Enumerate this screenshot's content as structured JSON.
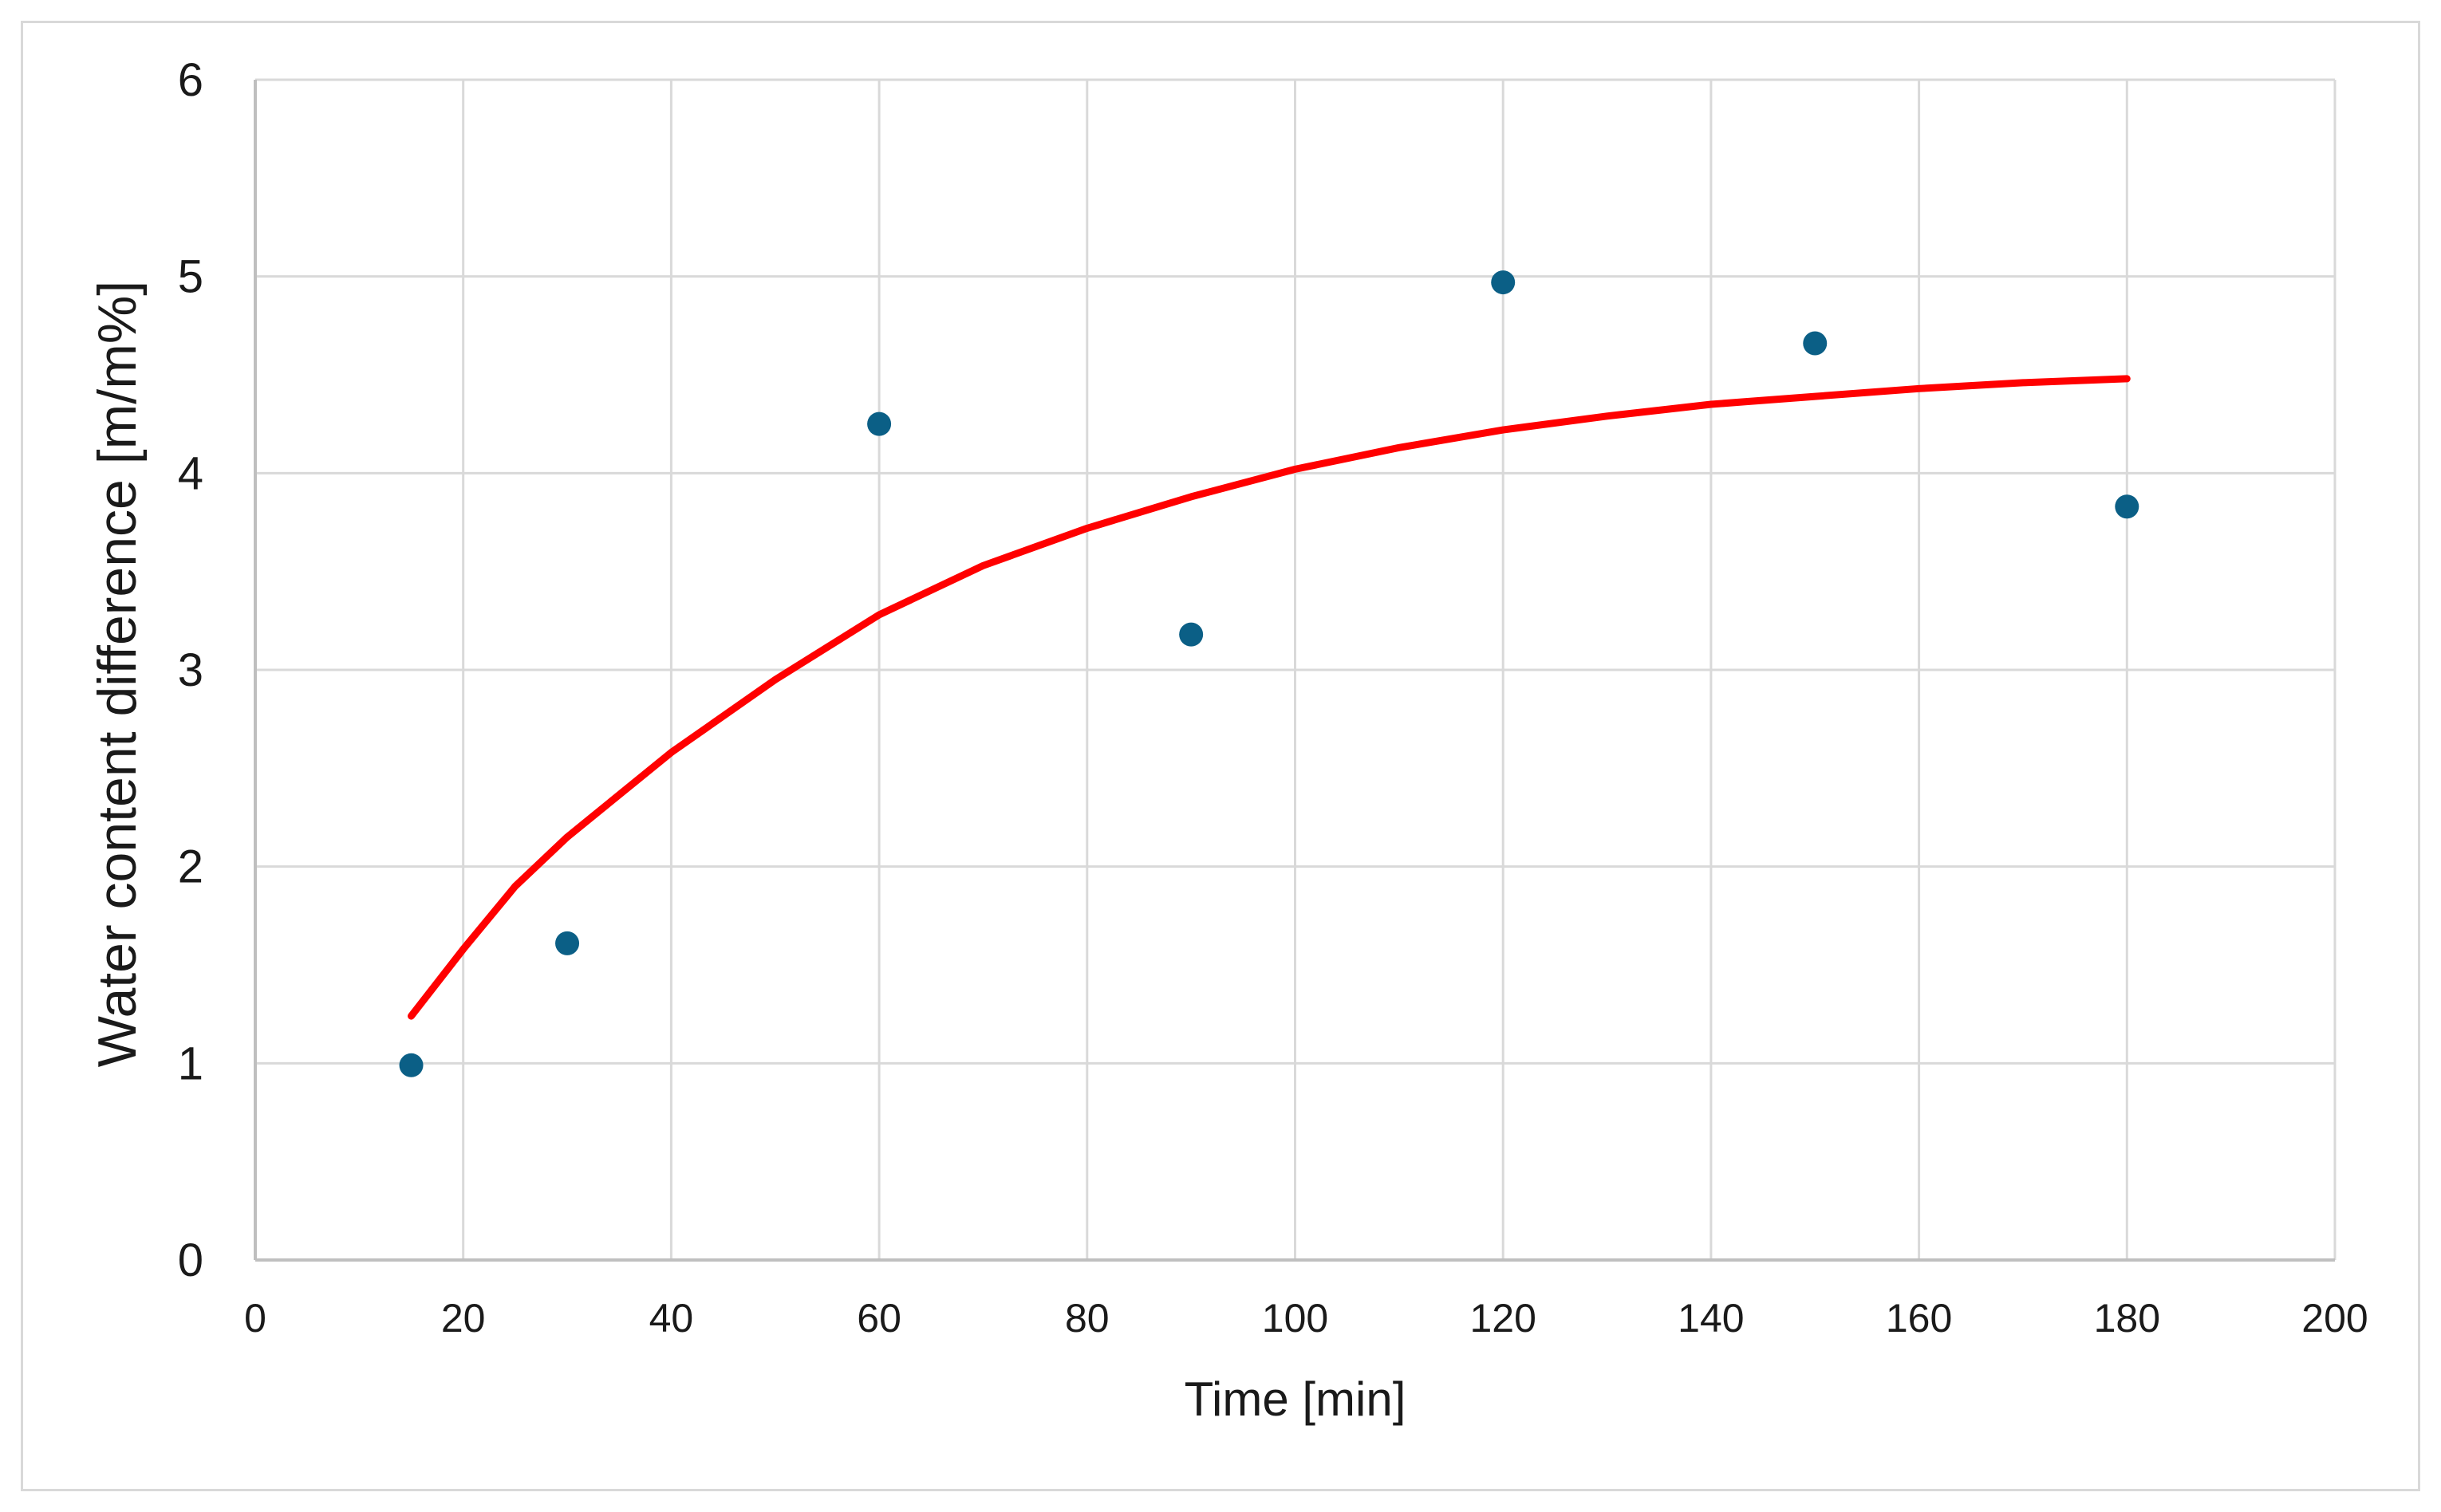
{
  "chart_data": {
    "type": "scatter",
    "title": "",
    "xlabel": "Time [min]",
    "ylabel": "Water content difference [m/m%]",
    "xlim": [
      0,
      200
    ],
    "ylim": [
      0,
      6
    ],
    "x_ticks": [
      0,
      20,
      40,
      60,
      80,
      100,
      120,
      140,
      160,
      180,
      200
    ],
    "y_ticks": [
      0,
      1,
      2,
      3,
      4,
      5,
      6
    ],
    "grid": true,
    "legend": "none",
    "series": [
      {
        "type": "scatter",
        "color": "#0b5f86",
        "points": [
          {
            "x": 15,
            "y": 0.99
          },
          {
            "x": 30,
            "y": 1.61
          },
          {
            "x": 60,
            "y": 4.25
          },
          {
            "x": 90,
            "y": 3.18
          },
          {
            "x": 120,
            "y": 4.97
          },
          {
            "x": 150,
            "y": 4.66
          },
          {
            "x": 180,
            "y": 3.83
          }
        ]
      },
      {
        "type": "line",
        "color": "#ff0000",
        "points": [
          {
            "x": 15,
            "y": 1.24
          },
          {
            "x": 20,
            "y": 1.58
          },
          {
            "x": 25,
            "y": 1.9
          },
          {
            "x": 30,
            "y": 2.15
          },
          {
            "x": 40,
            "y": 2.58
          },
          {
            "x": 50,
            "y": 2.95
          },
          {
            "x": 60,
            "y": 3.28
          },
          {
            "x": 70,
            "y": 3.53
          },
          {
            "x": 80,
            "y": 3.72
          },
          {
            "x": 90,
            "y": 3.88
          },
          {
            "x": 100,
            "y": 4.02
          },
          {
            "x": 110,
            "y": 4.13
          },
          {
            "x": 120,
            "y": 4.22
          },
          {
            "x": 130,
            "y": 4.29
          },
          {
            "x": 140,
            "y": 4.35
          },
          {
            "x": 150,
            "y": 4.39
          },
          {
            "x": 160,
            "y": 4.43
          },
          {
            "x": 170,
            "y": 4.46
          },
          {
            "x": 180,
            "y": 4.48
          }
        ]
      }
    ]
  }
}
